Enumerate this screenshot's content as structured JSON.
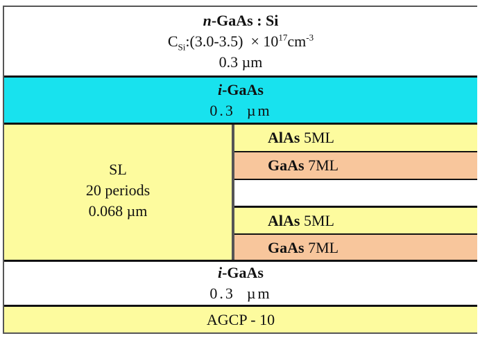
{
  "colors": {
    "yellow": "#fdfb9e",
    "cyan": "#18e2ee",
    "peach": "#f8c69c",
    "white": "#ffffff"
  },
  "layers": {
    "top": {
      "name_prefix": "n",
      "name_rest": "-GaAs : Si",
      "conc_prefix": "C",
      "conc_sub": "Si",
      "conc_mid": ":(3.0-3.5)  × 10",
      "conc_exp": "17",
      "conc_unit": "cm",
      "conc_unit_exp": "-3",
      "thickness": "0.3 µm"
    },
    "cap_igaas": {
      "name_prefix": "i",
      "name_rest": "-GaAs",
      "thickness": "0.3  µm"
    },
    "sl": {
      "label": "SL",
      "periods": "20 periods",
      "thickness": "0.068 µm",
      "cells": [
        {
          "material": "AlAs",
          "ml": " 5ML"
        },
        {
          "material": "GaAs",
          "ml": " 7ML"
        },
        {
          "material": "",
          "ml": ""
        },
        {
          "material": "AlAs",
          "ml": " 5ML"
        },
        {
          "material": "GaAs",
          "ml": " 7ML"
        }
      ]
    },
    "buffer_igaas": {
      "name_prefix": "i",
      "name_rest": "-GaAs",
      "thickness": "0.3  µm"
    },
    "substrate": {
      "label": "AGCP - 10"
    }
  }
}
